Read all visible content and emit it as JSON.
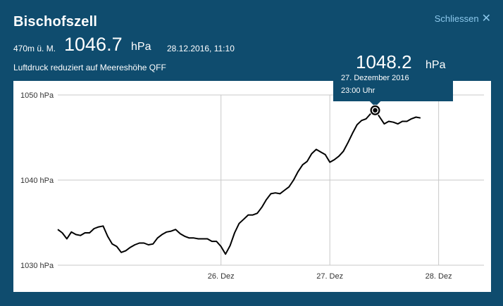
{
  "header": {
    "title": "Bischofszell",
    "close_label": "Schliessen",
    "altitude": "470m ü. M.",
    "pressure_value": "1046.7",
    "pressure_unit": "hPa",
    "timestamp": "28.12.2016, 11:10",
    "subtitle": "Luftdruck reduziert auf Meereshöhe QFF"
  },
  "tooltip": {
    "value": "1048.2",
    "unit": "hPa",
    "date": "27. Dezember 2016",
    "time": "23:00 Uhr"
  },
  "colors": {
    "background": "#0f4c6e",
    "link": "#8cc8ec",
    "line": "#000000",
    "grid": "#c8c8c8"
  },
  "chart_data": {
    "type": "line",
    "ylabel": "",
    "xlabel": "",
    "y_ticks": [
      "1050 hPa",
      "1040 hPa",
      "1030 hPa"
    ],
    "y_tick_values": [
      1050,
      1040,
      1030
    ],
    "ylim": [
      1030,
      1050
    ],
    "x_ticks": [
      "26. Dez",
      "27. Dez",
      "28. Dez"
    ],
    "x_tick_values": [
      24,
      48,
      72
    ],
    "xlim": [
      -12,
      82
    ],
    "grid": true,
    "series": [
      {
        "values": [
          [
            -12,
            1034.2
          ],
          [
            -11,
            1033.8
          ],
          [
            -10,
            1033.1
          ],
          [
            -9,
            1033.9
          ],
          [
            -8,
            1033.6
          ],
          [
            -7,
            1033.5
          ],
          [
            -6,
            1033.8
          ],
          [
            -5,
            1033.8
          ],
          [
            -4,
            1034.3
          ],
          [
            -3,
            1034.5
          ],
          [
            -2,
            1034.6
          ],
          [
            -1,
            1033.4
          ],
          [
            0,
            1032.5
          ],
          [
            1,
            1032.2
          ],
          [
            2,
            1031.5
          ],
          [
            3,
            1031.7
          ],
          [
            4,
            1032.1
          ],
          [
            5,
            1032.4
          ],
          [
            6,
            1032.6
          ],
          [
            7,
            1032.6
          ],
          [
            8,
            1032.4
          ],
          [
            9,
            1032.5
          ],
          [
            10,
            1033.2
          ],
          [
            11,
            1033.6
          ],
          [
            12,
            1033.9
          ],
          [
            13,
            1034.0
          ],
          [
            14,
            1034.2
          ],
          [
            15,
            1033.7
          ],
          [
            16,
            1033.4
          ],
          [
            17,
            1033.2
          ],
          [
            18,
            1033.2
          ],
          [
            19,
            1033.1
          ],
          [
            20,
            1033.1
          ],
          [
            21,
            1033.1
          ],
          [
            22,
            1032.8
          ],
          [
            23,
            1032.8
          ],
          [
            24,
            1032.2
          ],
          [
            25,
            1031.3
          ],
          [
            26,
            1032.3
          ],
          [
            27,
            1033.8
          ],
          [
            28,
            1034.9
          ],
          [
            29,
            1035.4
          ],
          [
            30,
            1035.9
          ],
          [
            31,
            1035.9
          ],
          [
            32,
            1036.1
          ],
          [
            33,
            1036.8
          ],
          [
            34,
            1037.7
          ],
          [
            35,
            1038.4
          ],
          [
            36,
            1038.5
          ],
          [
            37,
            1038.4
          ],
          [
            38,
            1038.8
          ],
          [
            39,
            1039.2
          ],
          [
            40,
            1040.0
          ],
          [
            41,
            1041.0
          ],
          [
            42,
            1041.8
          ],
          [
            43,
            1042.2
          ],
          [
            44,
            1043.1
          ],
          [
            45,
            1043.6
          ],
          [
            46,
            1043.3
          ],
          [
            47,
            1043.0
          ],
          [
            48,
            1042.1
          ],
          [
            49,
            1042.4
          ],
          [
            50,
            1042.8
          ],
          [
            51,
            1043.4
          ],
          [
            52,
            1044.4
          ],
          [
            53,
            1045.5
          ],
          [
            54,
            1046.5
          ],
          [
            55,
            1047.0
          ],
          [
            56,
            1047.2
          ],
          [
            57,
            1047.8
          ],
          [
            58,
            1048.2
          ],
          [
            59,
            1047.4
          ],
          [
            60,
            1046.6
          ],
          [
            61,
            1046.9
          ],
          [
            62,
            1046.8
          ],
          [
            63,
            1046.6
          ],
          [
            64,
            1046.9
          ],
          [
            65,
            1046.9
          ],
          [
            66,
            1047.2
          ],
          [
            67,
            1047.4
          ],
          [
            68,
            1047.3
          ]
        ]
      }
    ],
    "highlight": {
      "x": 58,
      "y": 1048.2
    }
  }
}
